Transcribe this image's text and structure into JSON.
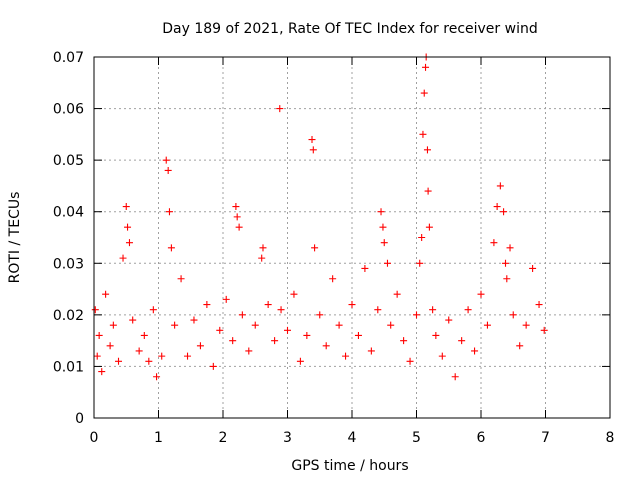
{
  "chart_data": {
    "type": "scatter",
    "title": "Day 189 of 2021, Rate Of TEC Index for receiver wind",
    "xlabel": "GPS time / hours",
    "ylabel": "ROTI / TECUs",
    "xlim": [
      0,
      8
    ],
    "ylim": [
      0,
      0.07
    ],
    "x_ticks": [
      0,
      1,
      2,
      3,
      4,
      5,
      6,
      7,
      8
    ],
    "y_ticks": [
      0,
      0.01,
      0.02,
      0.03,
      0.04,
      0.05,
      0.06,
      0.07
    ],
    "y_tick_labels": [
      "0",
      "0.01",
      "0.02",
      "0.03",
      "0.04",
      "0.05",
      "0.06",
      "0.07"
    ],
    "grid": true,
    "marker": "+",
    "color": "#ff0000",
    "series": [
      {
        "x": [
          0.02,
          0.05,
          0.08,
          0.12,
          0.18,
          0.25,
          0.3,
          0.38,
          0.45,
          0.5,
          0.52,
          0.55,
          0.6,
          0.7,
          0.78,
          0.85,
          0.92,
          0.97,
          1.05,
          1.12,
          1.15,
          1.17,
          1.2,
          1.25,
          1.35,
          1.45,
          1.55,
          1.65,
          1.75,
          1.85,
          1.95,
          2.05,
          2.15,
          2.2,
          2.22,
          2.25,
          2.3,
          2.4,
          2.5,
          2.6,
          2.62,
          2.7,
          2.8,
          2.88,
          2.9,
          3.0,
          3.1,
          3.2,
          3.3,
          3.38,
          3.4,
          3.42,
          3.5,
          3.6,
          3.7,
          3.8,
          3.9,
          4.0,
          4.1,
          4.2,
          4.3,
          4.4,
          4.45,
          4.48,
          4.5,
          4.55,
          4.6,
          4.7,
          4.8,
          4.9,
          5.0,
          5.05,
          5.08,
          5.1,
          5.12,
          5.14,
          5.15,
          5.17,
          5.18,
          5.2,
          5.25,
          5.3,
          5.4,
          5.5,
          5.6,
          5.7,
          5.8,
          5.9,
          6.0,
          6.1,
          6.2,
          6.25,
          6.3,
          6.35,
          6.38,
          6.4,
          6.45,
          6.5,
          6.6,
          6.7,
          6.8,
          6.9,
          6.98
        ],
        "y": [
          0.021,
          0.012,
          0.016,
          0.009,
          0.024,
          0.014,
          0.018,
          0.011,
          0.031,
          0.041,
          0.037,
          0.034,
          0.019,
          0.013,
          0.016,
          0.011,
          0.021,
          0.008,
          0.012,
          0.05,
          0.048,
          0.04,
          0.033,
          0.018,
          0.027,
          0.012,
          0.019,
          0.014,
          0.022,
          0.01,
          0.017,
          0.023,
          0.015,
          0.041,
          0.039,
          0.037,
          0.02,
          0.013,
          0.018,
          0.031,
          0.033,
          0.022,
          0.015,
          0.06,
          0.021,
          0.017,
          0.024,
          0.011,
          0.016,
          0.054,
          0.052,
          0.033,
          0.02,
          0.014,
          0.027,
          0.018,
          0.012,
          0.022,
          0.016,
          0.029,
          0.013,
          0.021,
          0.04,
          0.037,
          0.034,
          0.03,
          0.018,
          0.024,
          0.015,
          0.011,
          0.02,
          0.03,
          0.035,
          0.055,
          0.063,
          0.068,
          0.07,
          0.052,
          0.044,
          0.037,
          0.021,
          0.016,
          0.012,
          0.019,
          0.008,
          0.015,
          0.021,
          0.013,
          0.024,
          0.018,
          0.034,
          0.041,
          0.045,
          0.04,
          0.03,
          0.027,
          0.033,
          0.02,
          0.014,
          0.018,
          0.029,
          0.022,
          0.017
        ]
      }
    ]
  }
}
